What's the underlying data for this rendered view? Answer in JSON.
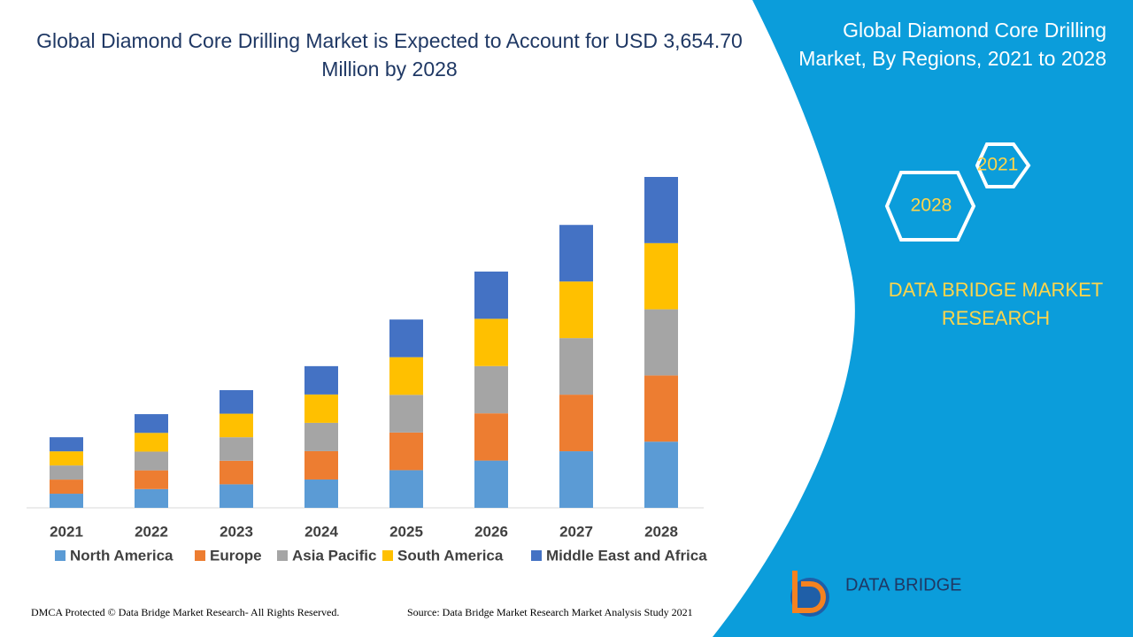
{
  "chart_data": {
    "type": "stacked-bar",
    "title": "Global Diamond Core Drilling Market is Expected to Account for USD 3,654.70 Million by 2028",
    "categories": [
      "2021",
      "2022",
      "2023",
      "2024",
      "2025",
      "2026",
      "2027",
      "2028"
    ],
    "series": [
      {
        "name": "North America",
        "color": "#5b9bd5",
        "values": [
          156,
          207,
          260,
          313,
          416,
          522,
          625,
          731
        ]
      },
      {
        "name": "Europe",
        "color": "#ed7d31",
        "values": [
          156,
          207,
          260,
          313,
          416,
          522,
          625,
          731
        ]
      },
      {
        "name": "Asia Pacific",
        "color": "#a5a5a5",
        "values": [
          156,
          207,
          260,
          313,
          416,
          522,
          625,
          731
        ]
      },
      {
        "name": "South America",
        "color": "#ffc000",
        "values": [
          156,
          207,
          260,
          313,
          416,
          522,
          625,
          731
        ]
      },
      {
        "name": "Middle East and Africa",
        "color": "#4472c4",
        "values": [
          156,
          207,
          260,
          313,
          416,
          522,
          625,
          731
        ]
      }
    ],
    "legend": "bottom"
  },
  "panel": {
    "title": "Global Diamond Core Drilling Market, By Regions, 2021 to 2028",
    "hex_labels": [
      "2021",
      "2028"
    ],
    "brand": "DATA BRIDGE MARKET RESEARCH",
    "logo": "DATA BRIDGE"
  },
  "footer": {
    "left": "DMCA Protected © Data Bridge Market Research- All Rights Reserved.",
    "right": "Source: Data Bridge Market Research Market Analysis Study 2021"
  }
}
